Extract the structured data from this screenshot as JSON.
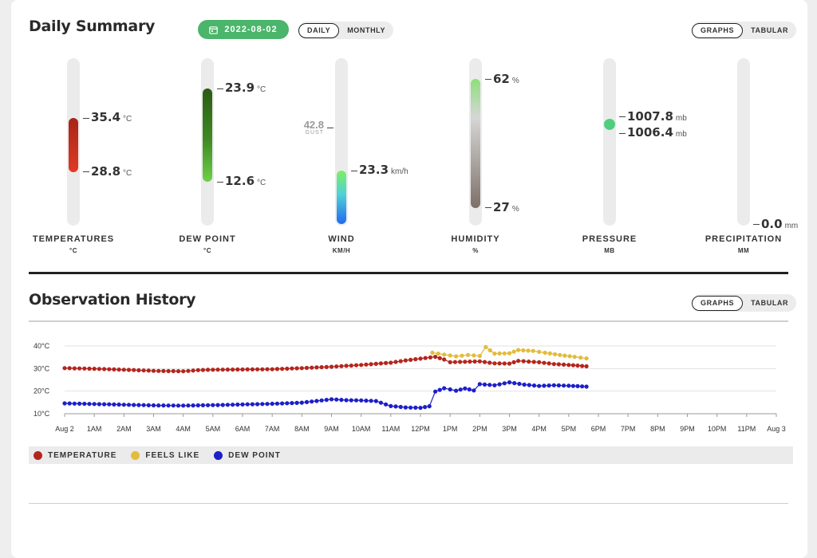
{
  "summary": {
    "title": "Daily Summary",
    "date": "2022-08-02",
    "period_toggle": {
      "daily": "DAILY",
      "monthly": "MONTHLY"
    },
    "view_toggle": {
      "graphs": "GRAPHS",
      "tabular": "TABULAR"
    }
  },
  "gauges": {
    "temperature": {
      "label": "TEMPERATURES",
      "unit_label": "°C",
      "high": "35.4",
      "low": "28.8",
      "unit": "°C"
    },
    "dew_point": {
      "label": "DEW POINT",
      "unit_label": "°C",
      "high": "23.9",
      "low": "12.6",
      "unit": "°C"
    },
    "wind": {
      "label": "WIND",
      "unit_label": "KM/H",
      "gust": "42.8",
      "gust_label": "GUST",
      "value": "23.3",
      "unit": "km/h"
    },
    "humidity": {
      "label": "HUMIDITY",
      "unit_label": "%",
      "high": "62",
      "low": "27",
      "unit": "%"
    },
    "pressure": {
      "label": "PRESSURE",
      "unit_label": "MB",
      "high": "1007.8",
      "low": "1006.4",
      "unit": "mb"
    },
    "precipitation": {
      "label": "PRECIPITATION",
      "unit_label": "MM",
      "value": "0.0",
      "unit": "mm"
    }
  },
  "history": {
    "title": "Observation History",
    "view_toggle": {
      "graphs": "GRAPHS",
      "tabular": "TABULAR"
    },
    "legend": [
      {
        "name": "TEMPERATURE",
        "color": "#b3261e"
      },
      {
        "name": "FEELS LIKE",
        "color": "#e2bc3c"
      },
      {
        "name": "DEW POINT",
        "color": "#1d1fc9"
      }
    ]
  },
  "chart_data": {
    "type": "line",
    "ylabel_ticks": [
      "40°C",
      "30°C",
      "20°C",
      "10°C"
    ],
    "ylim": [
      10,
      40
    ],
    "x_tick_labels": [
      "Aug 2",
      "1AM",
      "2AM",
      "3AM",
      "4AM",
      "5AM",
      "6AM",
      "7AM",
      "8AM",
      "9AM",
      "10AM",
      "11AM",
      "12PM",
      "1PM",
      "2PM",
      "3PM",
      "4PM",
      "5PM",
      "6PM",
      "7PM",
      "8PM",
      "9PM",
      "10PM",
      "11PM",
      "Aug 3"
    ],
    "x_unit": "hours since Aug 2 00:00",
    "series": [
      {
        "name": "TEMPERATURE",
        "color": "#b3261e",
        "points": [
          [
            0,
            30.2
          ],
          [
            1,
            29.9
          ],
          [
            2,
            29.5
          ],
          [
            3,
            29.0
          ],
          [
            4,
            28.8
          ],
          [
            4.5,
            29.3
          ],
          [
            5,
            29.5
          ],
          [
            6,
            29.6
          ],
          [
            7,
            29.7
          ],
          [
            8,
            30.2
          ],
          [
            9,
            30.8
          ],
          [
            10,
            31.6
          ],
          [
            11,
            32.6
          ],
          [
            11.5,
            33.6
          ],
          [
            12,
            34.4
          ],
          [
            12.5,
            35.2
          ],
          [
            12.8,
            34.0
          ],
          [
            13,
            32.8
          ],
          [
            13.5,
            33.0
          ],
          [
            14,
            33.2
          ],
          [
            14.5,
            32.3
          ],
          [
            15,
            32.2
          ],
          [
            15.3,
            33.4
          ],
          [
            16,
            32.8
          ],
          [
            16.5,
            32.0
          ],
          [
            17,
            31.6
          ],
          [
            17.6,
            31.0
          ]
        ]
      },
      {
        "name": "FEELS LIKE",
        "color": "#e2bc3c",
        "points": [
          [
            12.4,
            37.0
          ],
          [
            12.8,
            36.2
          ],
          [
            13.2,
            35.4
          ],
          [
            13.6,
            36.0
          ],
          [
            14,
            35.6
          ],
          [
            14.2,
            39.5
          ],
          [
            14.5,
            36.6
          ],
          [
            15,
            36.8
          ],
          [
            15.3,
            38.2
          ],
          [
            15.8,
            37.8
          ],
          [
            16.2,
            37.0
          ],
          [
            16.7,
            36.0
          ],
          [
            17.2,
            35.2
          ],
          [
            17.6,
            34.5
          ]
        ]
      },
      {
        "name": "DEW POINT",
        "color": "#1d1fc9",
        "points": [
          [
            0,
            14.6
          ],
          [
            1,
            14.3
          ],
          [
            2,
            14.0
          ],
          [
            3,
            13.7
          ],
          [
            4,
            13.6
          ],
          [
            5,
            13.8
          ],
          [
            6,
            14.1
          ],
          [
            7,
            14.4
          ],
          [
            8,
            14.9
          ],
          [
            9,
            16.4
          ],
          [
            9.5,
            16.0
          ],
          [
            10,
            15.9
          ],
          [
            10.5,
            15.6
          ],
          [
            11,
            13.4
          ],
          [
            11.5,
            12.8
          ],
          [
            12,
            12.6
          ],
          [
            12.3,
            13.3
          ],
          [
            12.5,
            19.8
          ],
          [
            12.8,
            21.3
          ],
          [
            13.2,
            20.2
          ],
          [
            13.5,
            21.2
          ],
          [
            13.8,
            20.3
          ],
          [
            14,
            23.1
          ],
          [
            14.5,
            22.6
          ],
          [
            15,
            23.9
          ],
          [
            15.5,
            22.9
          ],
          [
            16,
            22.3
          ],
          [
            16.5,
            22.6
          ],
          [
            17,
            22.4
          ],
          [
            17.6,
            22.0
          ]
        ]
      }
    ]
  }
}
